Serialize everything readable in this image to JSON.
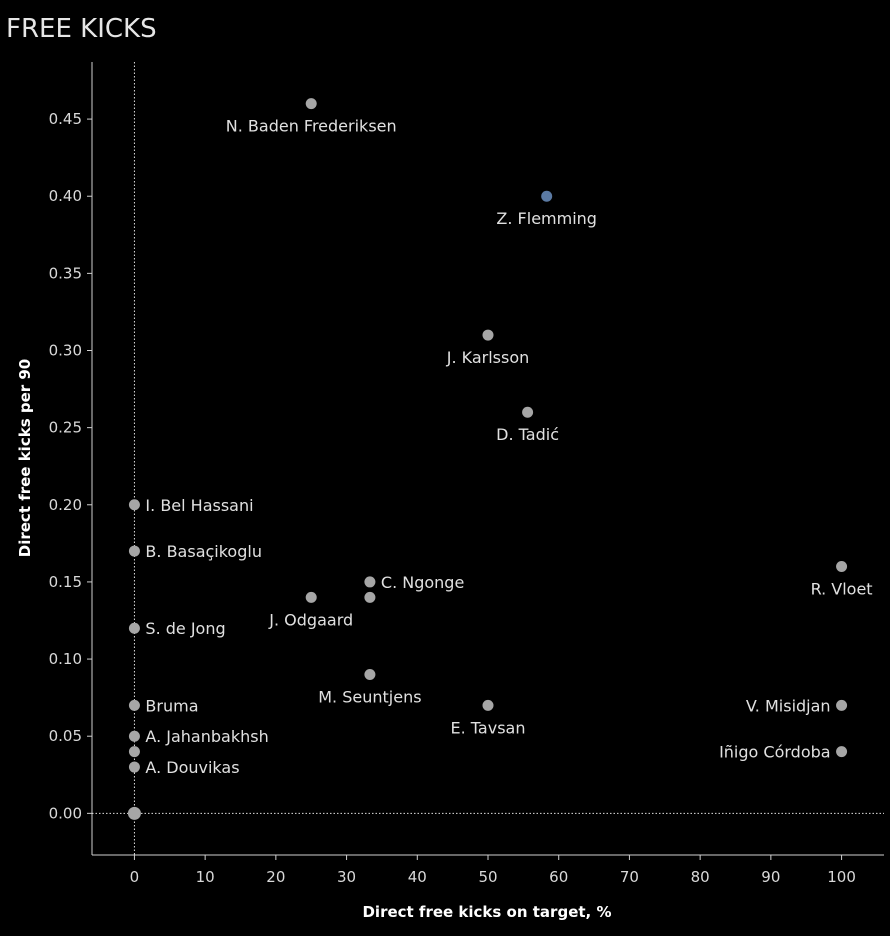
{
  "title": "FREE KICKS",
  "chart_data": {
    "type": "scatter",
    "xlabel": "Direct free kicks on target, %",
    "ylabel": "Direct free kicks per 90",
    "xlim": [
      -6,
      106
    ],
    "ylim": [
      -0.027,
      0.487
    ],
    "xticks": [
      "0",
      "10",
      "20",
      "30",
      "40",
      "50",
      "60",
      "70",
      "80",
      "90",
      "100"
    ],
    "yticks": [
      "0.00",
      "0.05",
      "0.10",
      "0.15",
      "0.20",
      "0.25",
      "0.30",
      "0.35",
      "0.40",
      "0.45"
    ],
    "grid": false,
    "reference_lines": [
      "x = 0",
      "y = 0"
    ],
    "colors": {
      "default": "#a6a6a6",
      "highlight": "#5b7aa3",
      "background": "#000000"
    },
    "points": [
      {
        "name": "N. Baden Frederiksen",
        "x": 25,
        "y": 0.46,
        "label_pos": "below"
      },
      {
        "name": "Z. Flemming",
        "x": 58.3,
        "y": 0.4,
        "label_pos": "below",
        "highlight": true
      },
      {
        "name": "J. Karlsson",
        "x": 50,
        "y": 0.31,
        "label_pos": "below"
      },
      {
        "name": "D. Tadić",
        "x": 55.6,
        "y": 0.26,
        "label_pos": "below"
      },
      {
        "name": "I. Bel Hassani",
        "x": 0,
        "y": 0.2,
        "label_pos": "right"
      },
      {
        "name": "B. Basaçikoglu",
        "x": 0,
        "y": 0.17,
        "label_pos": "right"
      },
      {
        "name": "R. Vloet",
        "x": 100,
        "y": 0.16,
        "label_pos": "below"
      },
      {
        "name": "C. Ngonge",
        "x": 33.3,
        "y": 0.15,
        "label_pos": "right"
      },
      {
        "name": "",
        "x": 33.3,
        "y": 0.14,
        "label_pos": "none"
      },
      {
        "name": "J. Odgaard",
        "x": 25,
        "y": 0.14,
        "label_pos": "below"
      },
      {
        "name": "S. de Jong",
        "x": 0,
        "y": 0.12,
        "label_pos": "right"
      },
      {
        "name": "M. Seuntjens",
        "x": 33.3,
        "y": 0.09,
        "label_pos": "below"
      },
      {
        "name": "Bruma",
        "x": 0,
        "y": 0.07,
        "label_pos": "right"
      },
      {
        "name": "E. Tavsan",
        "x": 50,
        "y": 0.07,
        "label_pos": "below"
      },
      {
        "name": "V. Misidjan",
        "x": 100,
        "y": 0.07,
        "label_pos": "left"
      },
      {
        "name": "A. Jahanbakhsh",
        "x": 0,
        "y": 0.05,
        "label_pos": "right"
      },
      {
        "name": "",
        "x": 0,
        "y": 0.04,
        "label_pos": "none"
      },
      {
        "name": "Iñigo Córdoba",
        "x": 100,
        "y": 0.04,
        "label_pos": "left"
      },
      {
        "name": "A. Douvikas",
        "x": 0,
        "y": 0.03,
        "label_pos": "right"
      },
      {
        "name": "",
        "x": 0,
        "y": 0.0,
        "label_pos": "none"
      }
    ]
  }
}
